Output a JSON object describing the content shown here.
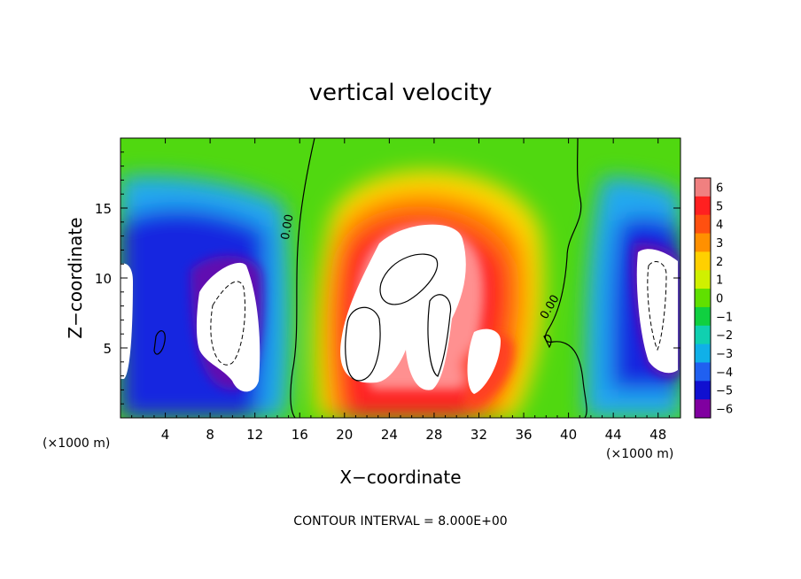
{
  "chart_data": {
    "type": "heatmap",
    "title": "vertical velocity",
    "xlabel": "X−coordinate",
    "ylabel": "Z−coordinate",
    "x_unit_left": "(×1000 m)",
    "x_unit_right": "(×1000 m)",
    "footer": "CONTOUR INTERVAL = 8.000E+00",
    "xlim": [
      0,
      50
    ],
    "ylim": [
      0,
      20
    ],
    "x_ticks": [
      4,
      8,
      12,
      16,
      20,
      24,
      28,
      32,
      36,
      40,
      44,
      48
    ],
    "x_tick_labels": [
      "4",
      "8",
      "12",
      "16",
      "20",
      "24",
      "28",
      "32",
      "36",
      "40",
      "44",
      "48"
    ],
    "y_ticks": [
      5,
      10,
      15
    ],
    "y_tick_labels": [
      "5",
      "10",
      "15"
    ],
    "colorbar": {
      "levels": [
        6,
        5,
        4,
        3,
        2,
        1,
        0,
        -1,
        -2,
        -3,
        -4,
        -5,
        -6
      ],
      "labels": [
        "6",
        "5",
        "4",
        "3",
        "2",
        "1",
        "0",
        "−1",
        "−2",
        "−3",
        "−4",
        "−5",
        "−6"
      ],
      "colors": [
        "#f08080",
        "#ff2020",
        "#ff5010",
        "#ff9000",
        "#ffd000",
        "#d0f000",
        "#60e000",
        "#10d040",
        "#10d0b0",
        "#10b0e8",
        "#2060f0",
        "#1010d0",
        "#8000a0"
      ]
    },
    "contour_labels": [
      {
        "text": "0.00",
        "x": 15.2,
        "z": 13.6,
        "angle": -80
      },
      {
        "text": "0.00",
        "x": 38.6,
        "z": 7.8,
        "angle": -60
      }
    ],
    "features": [
      {
        "kind": "updraft",
        "peak_w": 8,
        "x_center": 27,
        "z_center": 8,
        "note": "strong updraft core, white where above scale"
      },
      {
        "kind": "downdraft",
        "peak_w": -8,
        "x_center": 9,
        "z_center": 6,
        "note": "strong downdraft core"
      },
      {
        "kind": "downdraft",
        "peak_w": -8,
        "x_center": 47.5,
        "z_center": 8,
        "note": "strong downdraft core"
      },
      {
        "kind": "downdraft",
        "peak_w": -8,
        "x_center": 0.5,
        "z_center": 7,
        "note": "downdraft at left edge"
      }
    ]
  }
}
